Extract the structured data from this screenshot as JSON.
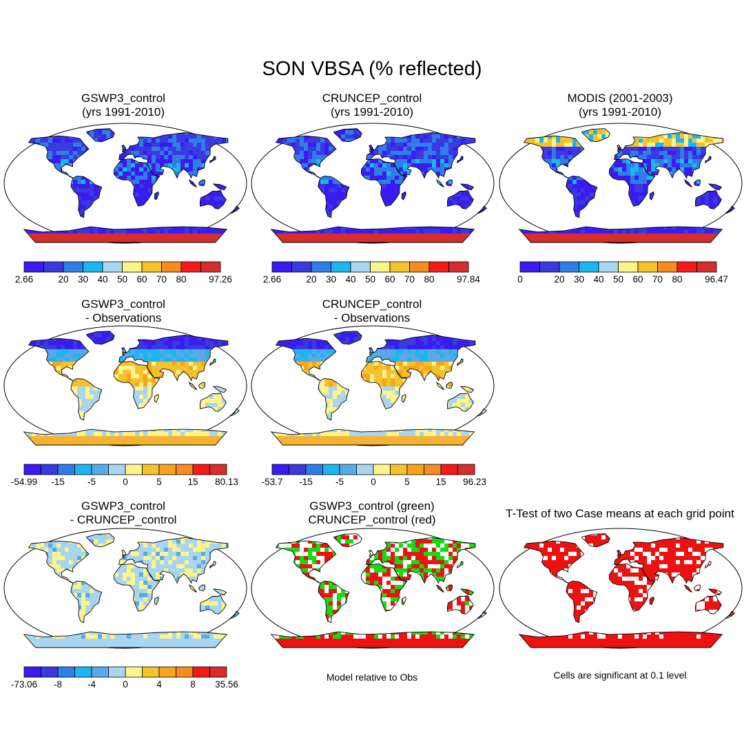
{
  "title": "SON VBSA (% reflected)",
  "palettes": {
    "sequential": [
      "#3a1cf2",
      "#3a3ae0",
      "#2f7ee8",
      "#1bb8ef",
      "#a8d6ee",
      "#fdf48c",
      "#f6c22c",
      "#f48d20",
      "#f41a1a",
      "#d62d2d"
    ],
    "diverging": [
      "#3a1cf2",
      "#3a3ae0",
      "#2f7ee8",
      "#1bb8ef",
      "#59a9e8",
      "#a8d6ee",
      "#fdf48c",
      "#f6c22c",
      "#f6a51e",
      "#f48d20",
      "#f41a1a",
      "#d62d2d"
    ]
  },
  "panels": [
    {
      "id": "p1",
      "title1": "GSWP3_control",
      "title2": "(yrs 1991-2010)",
      "style": "mean",
      "polar_color": "#d62d2d"
    },
    {
      "id": "p2",
      "title1": "CRUNCEP_control",
      "title2": "(yrs 1991-2010)",
      "style": "mean",
      "polar_color": "#d62d2d"
    },
    {
      "id": "p3",
      "title1": "MODIS (2001-2003)",
      "title2": "(yrs 1991-2010)",
      "style": "mean-obs",
      "polar_color": "#d62d2d"
    },
    {
      "id": "p4",
      "title1": "GSWP3_control",
      "title2": "- Observations",
      "style": "diff",
      "polar_color": "#f6b230"
    },
    {
      "id": "p5",
      "title1": "CRUNCEP_control",
      "title2": "- Observations",
      "style": "diff",
      "polar_color": "#f6b230"
    },
    {
      "id": "p6",
      "title1": "GSWP3_control",
      "title2": "- CRUNCEP_control",
      "style": "diff2",
      "polar_color": "#a8d6ee"
    },
    {
      "id": "p7",
      "title1": "GSWP3_control (green)",
      "title2": "CRUNCEP_control (red)",
      "style": "compare",
      "polar_color": "#ee1111"
    },
    {
      "id": "p8",
      "title1": "T-Test of two Case means at each grid point",
      "title2": "",
      "style": "ttest",
      "polar_color": "#ee1111"
    }
  ],
  "colorbars": [
    {
      "id": "cb1",
      "labels": [
        "2.66",
        "20",
        "30",
        "40",
        "50",
        "60",
        "70",
        "80",
        "97.26"
      ]
    },
    {
      "id": "cb2",
      "labels": [
        "2.66",
        "20",
        "30",
        "40",
        "50",
        "60",
        "70",
        "80",
        "97.84"
      ]
    },
    {
      "id": "cb3",
      "labels": [
        "0",
        "20",
        "30",
        "40",
        "50",
        "60",
        "70",
        "80",
        "96.47"
      ]
    },
    {
      "id": "cb4",
      "labels": [
        "-54.99",
        "-15",
        "-5",
        "0",
        "5",
        "15",
        "80.13"
      ]
    },
    {
      "id": "cb5",
      "labels": [
        "-53.7",
        "-15",
        "-5",
        "0",
        "5",
        "15",
        "96.23"
      ]
    },
    {
      "id": "cb6",
      "labels": [
        "-73.06",
        "-8",
        "-4",
        "0",
        "4",
        "8",
        "35.56"
      ]
    }
  ],
  "notes": {
    "model_relative": "Model relative to Obs",
    "significance": "Cells are significant at 0.1 level"
  }
}
